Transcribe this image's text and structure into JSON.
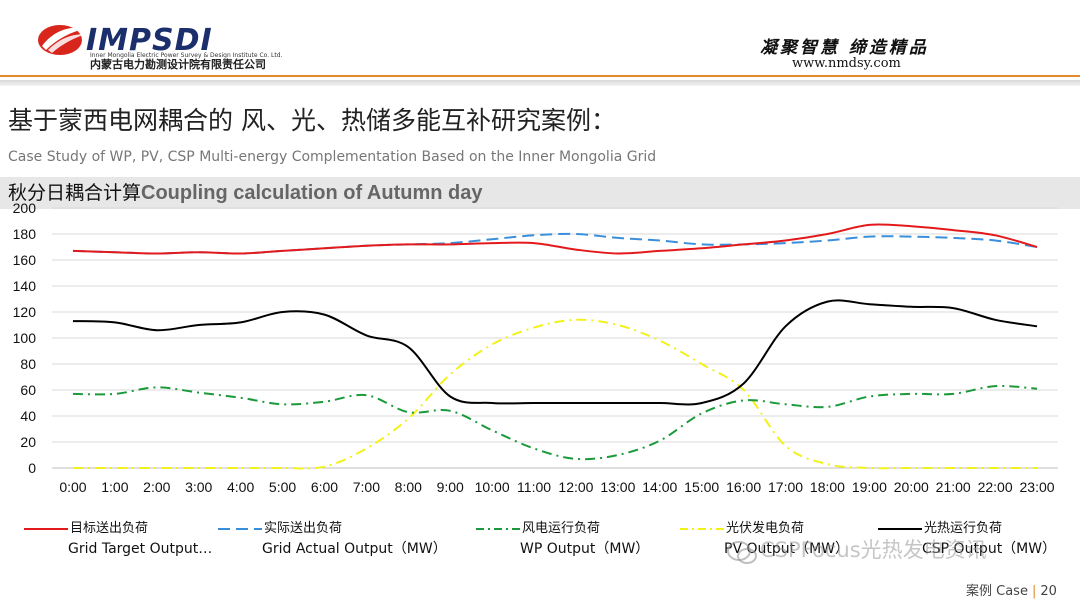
{
  "header": {
    "logo_name": "IMPSDI",
    "logo_en": "Inner Mongolia Electric Power Survey & Design Institute Co. Ltd.",
    "logo_cn": "内蒙古电力勘测设计院有限责任公司",
    "slogan": "凝聚智慧 缔造精品",
    "website": "www.nmdsy.com"
  },
  "title_cn": "基于蒙西电网耦合的 风、光、热储多能互补研究案例：",
  "title_en": "Case Study of WP, PV, CSP Multi-energy Complementation Based on the Inner Mongolia Grid",
  "subtitle_cn": "秋分日耦合计算",
  "subtitle_en": "Coupling calculation of Autumn day",
  "watermark": "CSPFocus光热发电资讯",
  "footer": {
    "label": "案例 Case",
    "page": "20"
  },
  "colors": {
    "target": "#e31a1c",
    "actual": "#3a8fdc",
    "wind": "#1a9a3a",
    "pv": "#f2f21a",
    "csp": "#000000",
    "accent": "#e38b2c"
  },
  "chart_data": {
    "type": "line",
    "x": [
      "0:00",
      "1:00",
      "2:00",
      "3:00",
      "4:00",
      "5:00",
      "6:00",
      "7:00",
      "8:00",
      "9:00",
      "10:00",
      "11:00",
      "12:00",
      "13:00",
      "14:00",
      "15:00",
      "16:00",
      "17:00",
      "18:00",
      "19:00",
      "20:00",
      "21:00",
      "22:00",
      "23:00"
    ],
    "yticks": [
      0,
      20,
      40,
      60,
      80,
      100,
      120,
      140,
      160,
      180,
      200
    ],
    "ylim": [
      0,
      200
    ],
    "series": [
      {
        "name": "目标送出负荷",
        "name_en": "Grid Target Output…",
        "style": "solid",
        "color": "#e31a1c",
        "values": [
          167,
          166,
          165,
          166,
          165,
          167,
          169,
          171,
          172,
          172,
          173,
          173,
          168,
          165,
          167,
          169,
          172,
          175,
          180,
          187,
          186,
          183,
          179,
          170
        ]
      },
      {
        "name": "实际送出负荷",
        "name_en": "Grid Actual Output（MW）",
        "style": "dash",
        "color": "#3a8fdc",
        "values": [
          167,
          166,
          165,
          166,
          165,
          167,
          169,
          171,
          172,
          173,
          176,
          179,
          180,
          177,
          175,
          172,
          172,
          173,
          175,
          178,
          178,
          177,
          175,
          170
        ]
      },
      {
        "name": "风电运行负荷",
        "name_en": "WP Output（MW）",
        "style": "dashdot",
        "color": "#1a9a3a",
        "values": [
          57,
          57,
          62,
          58,
          54,
          49,
          51,
          56,
          43,
          44,
          29,
          15,
          7,
          10,
          21,
          42,
          52,
          49,
          47,
          55,
          57,
          57,
          63,
          61
        ]
      },
      {
        "name": "光伏发电负荷",
        "name_en": "PV Output（MW）",
        "style": "dashdot",
        "color": "#f2f21a",
        "values": [
          0,
          0,
          0,
          0,
          0,
          0,
          1,
          15,
          38,
          72,
          95,
          108,
          114,
          110,
          98,
          80,
          60,
          17,
          3,
          0,
          0,
          0,
          0,
          0
        ]
      },
      {
        "name": "光热运行负荷",
        "name_en": "CSP Output（MW）",
        "style": "solid",
        "color": "#000000",
        "values": [
          113,
          112,
          106,
          110,
          112,
          120,
          118,
          102,
          93,
          55,
          50,
          50,
          50,
          50,
          50,
          50,
          65,
          109,
          128,
          126,
          124,
          123,
          114,
          109
        ]
      }
    ]
  }
}
